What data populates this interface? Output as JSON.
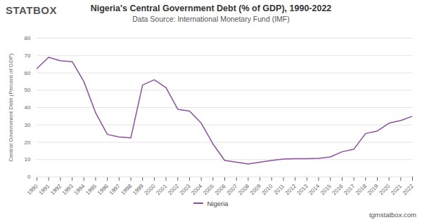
{
  "chart_data": {
    "type": "line",
    "title": "Nigeria's Central Government Debt (% of GDP), 1990-2022",
    "subtitle": "Data Source: International Monetary Fund (IMF)",
    "logo_text": "STATBOX",
    "caption": "tgmstatbox.com",
    "y_label": "Central Government Debt (Percent of GDP)",
    "x": [
      1990,
      1991,
      1992,
      1993,
      1994,
      1995,
      1996,
      1997,
      1998,
      1999,
      2000,
      2001,
      2002,
      2003,
      2004,
      2005,
      2006,
      2007,
      2008,
      2009,
      2010,
      2011,
      2012,
      2013,
      2014,
      2015,
      2016,
      2017,
      2018,
      2019,
      2020,
      2021,
      2022
    ],
    "series": [
      {
        "name": "Nigeria",
        "color": "#8c4f9f",
        "values": [
          62.5,
          69,
          67,
          66.5,
          55,
          37,
          24.5,
          23,
          22.5,
          53,
          56,
          51.5,
          39,
          38,
          31,
          19,
          9.5,
          8.5,
          7.5,
          8.5,
          9.5,
          10.3,
          10.5,
          10.5,
          10.7,
          11.5,
          14.5,
          16,
          25,
          26.5,
          31,
          32.5,
          35
        ]
      }
    ],
    "xlim": [
      1990,
      2022
    ],
    "xticks": [
      1990,
      1991,
      1992,
      1993,
      1994,
      1995,
      1996,
      1997,
      1998,
      1999,
      2000,
      2001,
      2002,
      2003,
      2004,
      2005,
      2006,
      2007,
      2008,
      2009,
      2010,
      2011,
      2012,
      2013,
      2014,
      2015,
      2016,
      2017,
      2018,
      2019,
      2020,
      2021,
      2022
    ],
    "ylim": [
      0,
      80
    ],
    "yticks": [
      0,
      10,
      20,
      30,
      40,
      50,
      60,
      70,
      80
    ],
    "grid": true,
    "legend": "bottom"
  }
}
